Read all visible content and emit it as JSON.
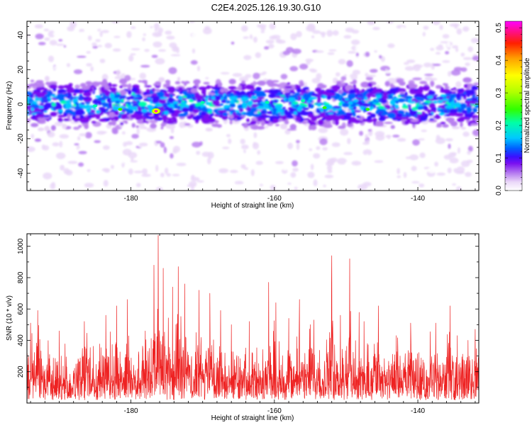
{
  "title": "C2E4.2025.126.19.30.G10",
  "chart_data": [
    {
      "type": "heatmap",
      "xlabel": "Height of straight line (km)",
      "ylabel": "Frequency (Hz)",
      "xlim": [
        -194.5,
        -131.5
      ],
      "ylim": [
        -50,
        48
      ],
      "xticks": [
        -180,
        -160,
        -140
      ],
      "yticks": [
        -40,
        -20,
        0,
        20,
        40
      ],
      "colorbar": {
        "label": "Normalized spectral amplitude",
        "range": [
          0.0,
          0.52
        ],
        "ticks": [
          0.0,
          0.1,
          0.2,
          0.3,
          0.4,
          0.5
        ],
        "colormap": [
          "#ffffff",
          "#d9b8f0",
          "#a060f0",
          "#6a00f0",
          "#2020ff",
          "#00c0ff",
          "#00ffa0",
          "#30ff00",
          "#c0ff00",
          "#ffff00",
          "#ffa000",
          "#ff3000",
          "#ff00ff"
        ]
      },
      "band": {
        "center_hz": 0,
        "halfwidth_hz": 9,
        "peak_x_km": -176.5,
        "peak_y_hz": -4,
        "peak_amplitude": 0.52
      }
    },
    {
      "type": "line",
      "xlabel": "Height of straight line (km)",
      "ylabel": "SNR (10 * v/v)",
      "xlim": [
        -194.5,
        -131.5
      ],
      "ylim": [
        0,
        1080
      ],
      "xticks": [
        -180,
        -160,
        -140
      ],
      "yticks": [
        200,
        400,
        600,
        800,
        1000
      ],
      "series": [
        {
          "color": "#ee2222",
          "peaks": [
            {
              "x": -194.0,
              "y": 510
            },
            {
              "x": -193.0,
              "y": 590
            },
            {
              "x": -190.0,
              "y": 460
            },
            {
              "x": -186.5,
              "y": 520
            },
            {
              "x": -183.5,
              "y": 560
            },
            {
              "x": -182.0,
              "y": 620
            },
            {
              "x": -180.5,
              "y": 660
            },
            {
              "x": -178.0,
              "y": 460
            },
            {
              "x": -176.8,
              "y": 880
            },
            {
              "x": -176.2,
              "y": 1070
            },
            {
              "x": -175.5,
              "y": 860
            },
            {
              "x": -174.2,
              "y": 740
            },
            {
              "x": -173.4,
              "y": 870
            },
            {
              "x": -172.5,
              "y": 760
            },
            {
              "x": -170.5,
              "y": 720
            },
            {
              "x": -169.0,
              "y": 700
            },
            {
              "x": -167.5,
              "y": 590
            },
            {
              "x": -166.0,
              "y": 500
            },
            {
              "x": -163.5,
              "y": 520
            },
            {
              "x": -160.8,
              "y": 770
            },
            {
              "x": -159.8,
              "y": 640
            },
            {
              "x": -158.0,
              "y": 540
            },
            {
              "x": -156.5,
              "y": 660
            },
            {
              "x": -155.0,
              "y": 500
            },
            {
              "x": -154.5,
              "y": 530
            },
            {
              "x": -152.0,
              "y": 940
            },
            {
              "x": -150.8,
              "y": 560
            },
            {
              "x": -149.5,
              "y": 920
            },
            {
              "x": -147.5,
              "y": 520
            },
            {
              "x": -145.5,
              "y": 620
            },
            {
              "x": -143.0,
              "y": 430
            },
            {
              "x": -141.0,
              "y": 510
            },
            {
              "x": -137.5,
              "y": 510
            },
            {
              "x": -135.5,
              "y": 620
            },
            {
              "x": -134.5,
              "y": 430
            },
            {
              "x": -133.0,
              "y": 400
            },
            {
              "x": -132.0,
              "y": 470
            }
          ],
          "baseline": {
            "mean": 220,
            "spread": 110,
            "floor": 20,
            "points": 1900
          }
        }
      ]
    }
  ]
}
